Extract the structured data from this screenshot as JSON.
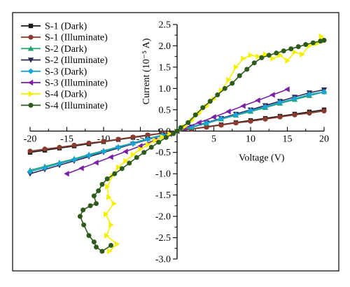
{
  "chart_data": {
    "type": "line",
    "xlabel": "Voltage (V)",
    "ylabel": "Current (10⁻⁵ A)",
    "xlim": [
      -20,
      20
    ],
    "ylim": [
      -3.0,
      2.5
    ],
    "x_ticks": [
      "-20",
      "-15",
      "-10",
      "-5",
      "0",
      "5",
      "10",
      "15",
      "20"
    ],
    "y_ticks": [
      "2.5",
      "2.0",
      "1.5",
      "1.0",
      "0.5",
      "0.0",
      "-0.5",
      "-1.0",
      "-1.5",
      "-2.0",
      "-2.5",
      "-3.0"
    ],
    "legend_position": "top-left",
    "grid": false,
    "series": [
      {
        "name": "S-1 (Dark)",
        "color": "#1a1a1a",
        "marker": "square",
        "x": [
          -20,
          -18,
          -16,
          -14,
          -12,
          -10,
          -8,
          -6,
          -4,
          -2,
          0,
          2,
          4,
          6,
          8,
          10,
          12,
          14,
          16,
          18,
          20
        ],
        "y": [
          -0.5,
          -0.45,
          -0.4,
          -0.35,
          -0.3,
          -0.25,
          -0.2,
          -0.15,
          -0.1,
          -0.05,
          0.0,
          0.05,
          0.1,
          0.15,
          0.2,
          0.25,
          0.3,
          0.35,
          0.4,
          0.45,
          0.5
        ]
      },
      {
        "name": "S-1 (Illuminate)",
        "color": "#8b3a2e",
        "marker": "circle",
        "x": [
          -20,
          -18,
          -16,
          -14,
          -12,
          -10,
          -8,
          -6,
          -4,
          -2,
          0,
          2,
          4,
          6,
          8,
          10,
          12,
          14,
          16,
          18,
          20
        ],
        "y": [
          -0.47,
          -0.42,
          -0.38,
          -0.33,
          -0.28,
          -0.24,
          -0.19,
          -0.14,
          -0.09,
          -0.05,
          0.0,
          0.05,
          0.09,
          0.14,
          0.19,
          0.23,
          0.28,
          0.33,
          0.38,
          0.42,
          0.47
        ]
      },
      {
        "name": "S-2 (Dark)",
        "color": "#1aa66a",
        "marker": "triangle-up",
        "x": [
          -20,
          -18,
          -16,
          -14,
          -12,
          -10,
          -8,
          -6,
          -4,
          -2,
          0,
          2,
          4,
          6,
          8,
          10,
          12,
          14,
          16,
          18,
          20
        ],
        "y": [
          -0.92,
          -0.83,
          -0.74,
          -0.65,
          -0.55,
          -0.46,
          -0.37,
          -0.28,
          -0.18,
          -0.09,
          0.0,
          0.09,
          0.18,
          0.28,
          0.37,
          0.46,
          0.55,
          0.65,
          0.74,
          0.83,
          0.92
        ]
      },
      {
        "name": "S-2 (Illuminate)",
        "color": "#2b2a55",
        "marker": "triangle-down",
        "x": [
          -20,
          -18,
          -16,
          -14,
          -12,
          -10,
          -8,
          -6,
          -4,
          -2,
          0,
          2,
          4,
          6,
          8,
          10,
          12,
          14,
          16,
          18,
          20
        ],
        "y": [
          -1.0,
          -0.9,
          -0.8,
          -0.7,
          -0.6,
          -0.5,
          -0.4,
          -0.3,
          -0.2,
          -0.1,
          0.0,
          0.1,
          0.2,
          0.3,
          0.4,
          0.5,
          0.6,
          0.7,
          0.8,
          0.9,
          0.97
        ]
      },
      {
        "name": "S-3 (Dark)",
        "color": "#1aa3d6",
        "marker": "diamond",
        "x": [
          -20,
          -18,
          -16,
          -14,
          -12,
          -10,
          -8,
          -6,
          -4,
          -2,
          0,
          2,
          4,
          6,
          8,
          10,
          12,
          14,
          16,
          18,
          20
        ],
        "y": [
          -0.95,
          -0.86,
          -0.76,
          -0.67,
          -0.57,
          -0.48,
          -0.38,
          -0.29,
          -0.19,
          -0.1,
          0.0,
          0.1,
          0.19,
          0.29,
          0.38,
          0.48,
          0.57,
          0.67,
          0.76,
          0.86,
          0.92
        ]
      },
      {
        "name": "S-3 (Illuminate)",
        "color": "#7a1fa8",
        "marker": "triangle-left",
        "x": [
          -15,
          -13,
          -11,
          -9,
          -7,
          -5,
          -3,
          -1,
          0,
          1,
          3,
          5,
          7,
          9,
          11,
          13,
          15
        ],
        "y": [
          -1.0,
          -0.87,
          -0.74,
          -0.61,
          -0.48,
          -0.35,
          -0.21,
          -0.07,
          0.0,
          0.07,
          0.2,
          0.33,
          0.46,
          0.59,
          0.72,
          0.85,
          0.98
        ]
      },
      {
        "name": "S-4 (Dark)",
        "color": "#f5f000",
        "marker": "triangle-right",
        "x": [
          -9.2,
          -8.2,
          -9.6,
          -9.0,
          -9.7,
          -8.6,
          -9.3,
          -9.5,
          -8.8,
          -8.0,
          -7.0,
          -6.0,
          -5.0,
          -4.0,
          -3.0,
          -2.0,
          -1.0,
          0,
          1,
          2,
          3,
          4,
          5,
          6,
          7,
          8,
          9,
          10,
          11,
          12,
          13,
          14,
          15,
          16,
          17,
          18,
          19,
          19.6,
          20
        ],
        "y": [
          -2.82,
          -2.65,
          -2.45,
          -2.2,
          -1.95,
          -1.7,
          -1.55,
          -1.3,
          -1.05,
          -0.85,
          -0.7,
          -0.55,
          -0.42,
          -0.32,
          -0.22,
          -0.14,
          -0.07,
          0.0,
          0.1,
          0.25,
          0.42,
          0.58,
          0.75,
          0.95,
          1.2,
          1.5,
          1.7,
          1.78,
          1.75,
          1.8,
          1.7,
          1.78,
          1.65,
          1.85,
          1.8,
          2.0,
          2.05,
          2.22,
          2.12
        ]
      },
      {
        "name": "S-4 (Illuminate)",
        "color": "#2e5a1c",
        "marker": "circle",
        "x": [
          -9.0,
          -10.2,
          -11.0,
          -11.3,
          -12.0,
          -12.7,
          -13.2,
          -12.8,
          -11.8,
          -11.0,
          -11.3,
          -10.7,
          -10.2,
          -9.5,
          -8.5,
          -7.5,
          -6.5,
          -5.5,
          -4.5,
          -3.5,
          -2.5,
          -1.5,
          -0.5,
          0,
          0.5,
          1.5,
          2.5,
          3.5,
          4.5,
          5.5,
          6.5,
          7.5,
          8.5,
          9.5,
          10.5,
          11.5,
          12.5,
          13.5,
          14.5,
          15.5,
          16.5,
          17.5,
          18.5,
          19.5,
          20
        ],
        "y": [
          -2.68,
          -2.82,
          -2.72,
          -2.6,
          -2.45,
          -2.2,
          -2.0,
          -1.85,
          -1.75,
          -1.7,
          -1.52,
          -1.4,
          -1.25,
          -1.12,
          -1.0,
          -0.88,
          -0.75,
          -0.62,
          -0.5,
          -0.38,
          -0.26,
          -0.15,
          -0.06,
          0.0,
          0.08,
          0.2,
          0.38,
          0.55,
          0.7,
          0.85,
          1.0,
          1.12,
          1.3,
          1.45,
          1.6,
          1.72,
          1.78,
          1.83,
          1.88,
          1.93,
          1.98,
          2.03,
          2.07,
          2.11,
          2.13
        ]
      }
    ]
  }
}
